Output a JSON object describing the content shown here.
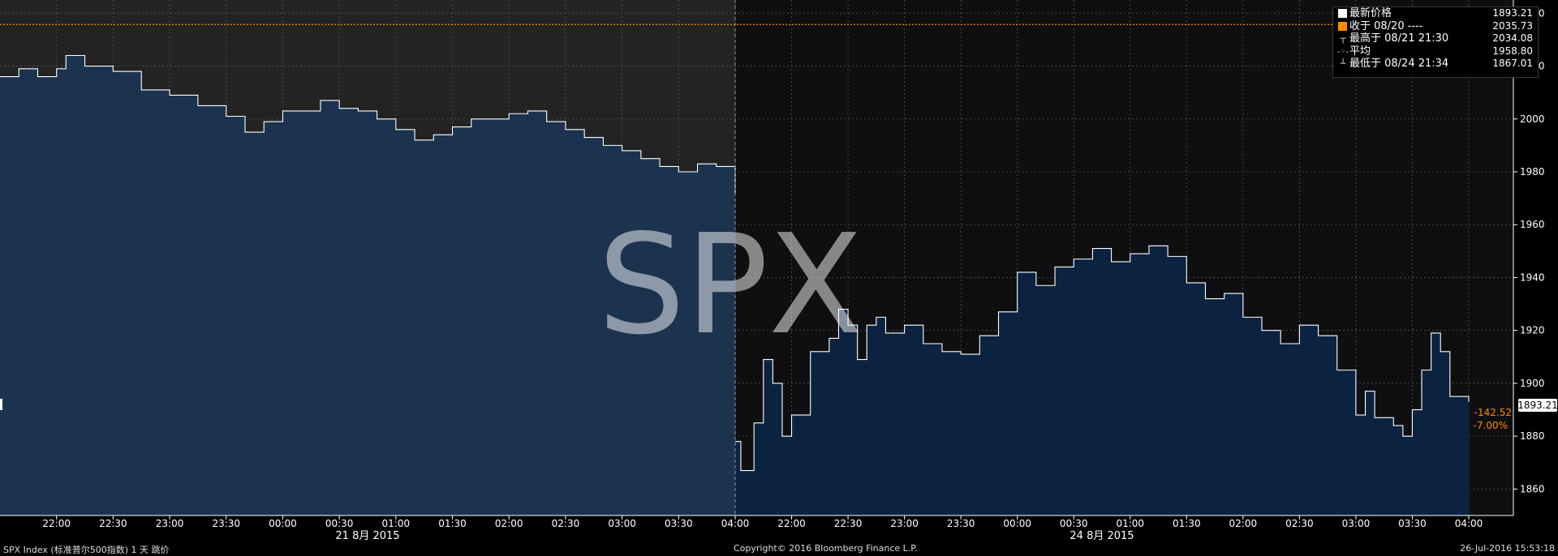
{
  "watermark": "SPX",
  "legend": [
    {
      "label": "最新价格",
      "value": "1893.21",
      "color": "#ffffff",
      "symbol": "square"
    },
    {
      "label": "收于 08/20 ----",
      "value": "2035.73",
      "color": "#ff8a00",
      "symbol": "square"
    },
    {
      "label": "最高于 08/21 21:30",
      "value": "2034.08",
      "color": "#cccccc",
      "symbol": "T"
    },
    {
      "label": "平均",
      "value": "1958.80",
      "color": "#cccccc",
      "symbol": "avg"
    },
    {
      "label": "最低于 08/24 21:34",
      "value": "1867.01",
      "color": "#cccccc",
      "symbol": "bottom"
    }
  ],
  "price_tag": "1893.21",
  "change": {
    "abs": "-142.52",
    "pct": "-7.00%"
  },
  "footer": {
    "left": "SPX Index (标准普尔500指数) 1 天  跳价",
    "center": "Copyright© 2016 Bloomberg Finance L.P.",
    "right": "26-Jul-2016 15:53:18"
  },
  "chart_data": {
    "type": "area",
    "ylim": [
      1850,
      2045
    ],
    "yticks": [
      1860,
      1880,
      1900,
      1920,
      1940,
      1960,
      1980,
      2000,
      2020,
      2040
    ],
    "reference_line": {
      "name": "收于 08/20",
      "value": 2035.73,
      "color": "#ff8a00"
    },
    "colors": {
      "day1_bg": "#232323",
      "day2_bg": "#0f0f12",
      "day1_fill": "#1c3350",
      "day2_fill": "#0c2241",
      "line": "#ffffff",
      "grid": "#555555"
    },
    "days": [
      {
        "date_label": "21 8月 2015",
        "x_ticks": [
          "22:00",
          "22:30",
          "23:00",
          "23:30",
          "00:00",
          "00:30",
          "01:00",
          "01:30",
          "02:00",
          "02:30",
          "03:00",
          "03:30",
          "04:00"
        ],
        "start": "21:30",
        "end": "04:00",
        "points": [
          [
            "21:30",
            2016
          ],
          [
            "21:40",
            2019
          ],
          [
            "21:50",
            2016
          ],
          [
            "22:00",
            2019
          ],
          [
            "22:05",
            2024
          ],
          [
            "22:15",
            2020
          ],
          [
            "22:30",
            2018
          ],
          [
            "22:45",
            2011
          ],
          [
            "23:00",
            2009
          ],
          [
            "23:15",
            2005
          ],
          [
            "23:30",
            2001
          ],
          [
            "23:40",
            1995
          ],
          [
            "23:50",
            1999
          ],
          [
            "24:00",
            2003
          ],
          [
            "24:20",
            2007
          ],
          [
            "24:30",
            2004
          ],
          [
            "24:40",
            2003
          ],
          [
            "24:50",
            2000
          ],
          [
            "25:00",
            1996
          ],
          [
            "25:10",
            1992
          ],
          [
            "25:20",
            1994
          ],
          [
            "25:30",
            1997
          ],
          [
            "25:40",
            2000
          ],
          [
            "25:50",
            2000
          ],
          [
            "26:00",
            2002
          ],
          [
            "26:10",
            2003
          ],
          [
            "26:20",
            1999
          ],
          [
            "26:30",
            1996
          ],
          [
            "26:40",
            1993
          ],
          [
            "26:50",
            1990
          ],
          [
            "27:00",
            1988
          ],
          [
            "27:10",
            1985
          ],
          [
            "27:20",
            1982
          ],
          [
            "27:30",
            1980
          ],
          [
            "27:40",
            1983
          ],
          [
            "27:50",
            1982
          ],
          [
            "28:00",
            1972
          ]
        ]
      },
      {
        "date_label": "24 8月 2015",
        "x_ticks": [
          "22:00",
          "22:30",
          "23:00",
          "23:30",
          "00:00",
          "00:30",
          "01:00",
          "01:30",
          "02:00",
          "02:30",
          "03:00",
          "03:30",
          "04:00"
        ],
        "start": "21:30",
        "end": "04:00",
        "points": [
          [
            "21:30",
            1878
          ],
          [
            "21:33",
            1867
          ],
          [
            "21:40",
            1885
          ],
          [
            "21:45",
            1909
          ],
          [
            "21:50",
            1900
          ],
          [
            "21:55",
            1880
          ],
          [
            "22:00",
            1888
          ],
          [
            "22:10",
            1912
          ],
          [
            "22:20",
            1917
          ],
          [
            "22:25",
            1928
          ],
          [
            "22:30",
            1922
          ],
          [
            "22:35",
            1909
          ],
          [
            "22:40",
            1922
          ],
          [
            "22:45",
            1925
          ],
          [
            "22:50",
            1919
          ],
          [
            "23:00",
            1922
          ],
          [
            "23:10",
            1915
          ],
          [
            "23:20",
            1912
          ],
          [
            "23:30",
            1911
          ],
          [
            "23:40",
            1918
          ],
          [
            "23:50",
            1927
          ],
          [
            "24:00",
            1942
          ],
          [
            "24:10",
            1937
          ],
          [
            "24:20",
            1944
          ],
          [
            "24:30",
            1947
          ],
          [
            "24:40",
            1951
          ],
          [
            "24:50",
            1946
          ],
          [
            "25:00",
            1949
          ],
          [
            "25:10",
            1952
          ],
          [
            "25:20",
            1948
          ],
          [
            "25:30",
            1938
          ],
          [
            "25:40",
            1932
          ],
          [
            "25:50",
            1934
          ],
          [
            "26:00",
            1925
          ],
          [
            "26:10",
            1920
          ],
          [
            "26:20",
            1915
          ],
          [
            "26:30",
            1922
          ],
          [
            "26:40",
            1918
          ],
          [
            "26:50",
            1905
          ],
          [
            "27:00",
            1888
          ],
          [
            "27:05",
            1897
          ],
          [
            "27:10",
            1887
          ],
          [
            "27:20",
            1884
          ],
          [
            "27:25",
            1880
          ],
          [
            "27:30",
            1890
          ],
          [
            "27:35",
            1905
          ],
          [
            "27:40",
            1919
          ],
          [
            "27:45",
            1912
          ],
          [
            "27:50",
            1895
          ],
          [
            "28:00",
            1893
          ]
        ]
      }
    ]
  }
}
